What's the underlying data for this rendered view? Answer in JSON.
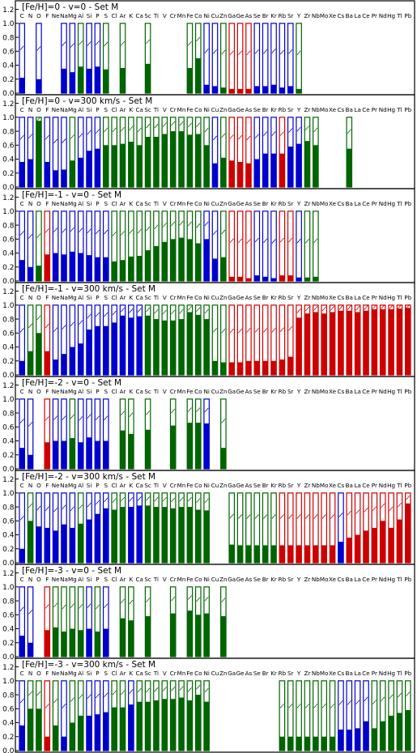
{
  "colors": {
    "blue": "#0000cc",
    "green": "#006400",
    "red": "#cc0000",
    "frame": "#000000"
  },
  "elements": [
    "C",
    "N",
    "O",
    "F",
    "Ne",
    "Na",
    "Mg",
    "Al",
    "Si",
    "P",
    "S",
    "Cl",
    "Ar",
    "K",
    "Ca",
    "Sc",
    "Ti",
    "V",
    "Cr",
    "Mn",
    "Fe",
    "Co",
    "Ni",
    "Cu",
    "Zn",
    "Ga",
    "Ge",
    "As",
    "Se",
    "Br",
    "Kr",
    "Rb",
    "Sr",
    "Y",
    "Zr",
    "Nb",
    "Mo",
    "Xe",
    "Cs",
    "Ba",
    "La",
    "Ce",
    "Pr",
    "Nd",
    "Hg",
    "Tl",
    "Pb"
  ],
  "chart_data": [
    {
      "type": "bar",
      "title": "[Fe/H]=0 - v=0 - Set M",
      "ylim": [
        0,
        1.3
      ],
      "yticks": [
        "0.0",
        "0.2",
        "0.4",
        "0.6",
        "0.8",
        "1.0",
        "1.2"
      ],
      "categories": [
        "C",
        "N",
        "O",
        "F",
        "Ne",
        "Na",
        "Mg",
        "Al",
        "Si",
        "P",
        "S",
        "Cl",
        "Ar",
        "K",
        "Ca",
        "Sc",
        "Ti",
        "V",
        "Cr",
        "Mn",
        "Fe",
        "Co",
        "Ni",
        "Cu",
        "Zn",
        "Ga",
        "Ge",
        "As",
        "Se",
        "Br",
        "Kr",
        "Rb",
        "Sr",
        "Y",
        "Zr",
        "Nb",
        "Mo",
        "Xe",
        "Cs",
        "Ba",
        "La",
        "Ce",
        "Pr",
        "Nd",
        "Hg",
        "Tl",
        "Pb"
      ],
      "values": [
        0.22,
        null,
        0.2,
        null,
        null,
        0.35,
        0.3,
        0.38,
        0.35,
        0.38,
        0.34,
        null,
        0.36,
        null,
        null,
        0.42,
        null,
        null,
        null,
        null,
        0.36,
        0.5,
        0.12,
        0.1,
        0.08,
        0.06,
        0.06,
        0.06,
        0.1,
        0.1,
        0.12,
        0.08,
        0.1,
        0.06,
        null,
        null,
        null,
        null,
        null,
        null,
        null,
        null,
        null,
        null,
        null,
        null,
        null
      ],
      "colors": [
        "b",
        null,
        "b",
        null,
        null,
        "b",
        "b",
        "g",
        "b",
        "b",
        "g",
        null,
        "g",
        null,
        null,
        "g",
        null,
        null,
        null,
        null,
        "g",
        "g",
        "b",
        "b",
        "g",
        "r",
        "r",
        "r",
        "b",
        "b",
        "b",
        "b",
        "b",
        "g",
        null,
        null,
        null,
        null,
        null,
        null,
        null,
        null,
        null,
        null,
        null,
        null,
        null
      ]
    },
    {
      "type": "bar",
      "title": "[Fe/H]=0 - v=300 km/s - Set M",
      "ylim": [
        0,
        1.3
      ],
      "yticks": [
        "0.0",
        "0.2",
        "0.4",
        "0.6",
        "0.8",
        "1.0",
        "1.2"
      ],
      "categories": [
        "C",
        "N",
        "O",
        "F",
        "Ne",
        "Na",
        "Mg",
        "Al",
        "Si",
        "P",
        "S",
        "Cl",
        "Ar",
        "K",
        "Ca",
        "Sc",
        "Ti",
        "V",
        "Cr",
        "Mn",
        "Fe",
        "Co",
        "Ni",
        "Cu",
        "Zn",
        "Ga",
        "Ge",
        "As",
        "Se",
        "Br",
        "Kr",
        "Rb",
        "Sr",
        "Y",
        "Zr",
        "Nb",
        "Mo",
        "Xe",
        "Cs",
        "Ba",
        "La",
        "Ce",
        "Pr",
        "Nd",
        "Hg",
        "Tl",
        "Pb"
      ],
      "values": [
        0.36,
        0.4,
        0.95,
        0.36,
        0.24,
        0.25,
        0.38,
        0.42,
        0.52,
        0.55,
        0.6,
        0.6,
        0.62,
        0.65,
        0.6,
        0.72,
        0.72,
        0.76,
        0.8,
        0.8,
        0.75,
        0.76,
        0.6,
        0.34,
        0.42,
        0.38,
        0.36,
        0.34,
        0.4,
        0.48,
        0.48,
        0.48,
        0.58,
        0.62,
        0.66,
        0.6,
        null,
        null,
        null,
        0.55,
        null,
        null,
        null,
        null,
        null,
        null,
        null
      ],
      "colors": [
        "b",
        "b",
        "g",
        "b",
        "b",
        "b",
        "g",
        "b",
        "b",
        "b",
        "g",
        "g",
        "g",
        "g",
        "g",
        "g",
        "g",
        "g",
        "g",
        "g",
        "g",
        "g",
        "g",
        "b",
        "g",
        "r",
        "r",
        "r",
        "b",
        "b",
        "b",
        "r",
        "b",
        "b",
        "g",
        "g",
        null,
        null,
        null,
        "g",
        null,
        null,
        null,
        null,
        null,
        null,
        null
      ]
    },
    {
      "type": "bar",
      "title": "[Fe/H]=-1 - v=0 - Set M",
      "ylim": [
        0,
        1.3
      ],
      "yticks": [
        "0.0",
        "0.2",
        "0.4",
        "0.6",
        "0.8",
        "1.0",
        "1.2"
      ],
      "categories": [
        "C",
        "N",
        "O",
        "F",
        "Ne",
        "Na",
        "Mg",
        "Al",
        "Si",
        "P",
        "S",
        "Cl",
        "Ar",
        "K",
        "Ca",
        "Sc",
        "Ti",
        "V",
        "Cr",
        "Mn",
        "Fe",
        "Co",
        "Ni",
        "Cu",
        "Zn",
        "Ga",
        "Ge",
        "As",
        "Se",
        "Br",
        "Kr",
        "Rb",
        "Sr",
        "Y",
        "Zr",
        "Nb",
        "Mo",
        "Xe",
        "Cs",
        "Ba",
        "La",
        "Ce",
        "Pr",
        "Nd",
        "Hg",
        "Tl",
        "Pb"
      ],
      "values": [
        0.3,
        0.2,
        0.22,
        0.38,
        0.4,
        0.38,
        0.42,
        0.4,
        0.37,
        0.34,
        0.34,
        0.28,
        0.3,
        0.35,
        0.36,
        0.44,
        0.5,
        0.56,
        0.6,
        0.62,
        0.6,
        0.54,
        0.6,
        0.32,
        0.34,
        0.06,
        0.06,
        0.04,
        0.08,
        0.06,
        0.04,
        0.08,
        0.08,
        0.05,
        0.05,
        0.06,
        null,
        null,
        null,
        null,
        null,
        null,
        null,
        null,
        null,
        null,
        null
      ],
      "colors": [
        "b",
        "b",
        "g",
        "r",
        "b",
        "b",
        "b",
        "b",
        "b",
        "b",
        "b",
        "g",
        "g",
        "g",
        "g",
        "g",
        "g",
        "g",
        "g",
        "g",
        "g",
        "g",
        "b",
        "b",
        "g",
        "r",
        "r",
        "r",
        "b",
        "b",
        "b",
        "r",
        "r",
        "b",
        "g",
        "g",
        null,
        null,
        null,
        null,
        null,
        null,
        null,
        null,
        null,
        null,
        null
      ]
    },
    {
      "type": "bar",
      "title": "[Fe/H]=-1 - v=300 km/s - Set M",
      "ylim": [
        0,
        1.3
      ],
      "yticks": [
        "0.0",
        "0.2",
        "0.4",
        "0.6",
        "0.8",
        "1.0",
        "1.2"
      ],
      "categories": [
        "C",
        "N",
        "O",
        "F",
        "Ne",
        "Na",
        "Mg",
        "Al",
        "Si",
        "P",
        "S",
        "Cl",
        "Ar",
        "K",
        "Ca",
        "Sc",
        "Ti",
        "V",
        "Cr",
        "Mn",
        "Fe",
        "Co",
        "Ni",
        "Cu",
        "Zn",
        "Ga",
        "Ge",
        "As",
        "Se",
        "Br",
        "Kr",
        "Rb",
        "Sr",
        "Y",
        "Zr",
        "Nb",
        "Mo",
        "Xe",
        "Cs",
        "Ba",
        "La",
        "Ce",
        "Pr",
        "Nd",
        "Hg",
        "Tl",
        "Pb"
      ],
      "values": [
        0.2,
        0.34,
        0.6,
        0.34,
        0.22,
        0.3,
        0.4,
        0.45,
        0.65,
        0.7,
        0.7,
        0.75,
        0.85,
        0.82,
        0.84,
        0.85,
        0.8,
        0.78,
        0.78,
        0.8,
        0.9,
        0.86,
        0.8,
        0.2,
        0.18,
        0.18,
        0.18,
        0.2,
        0.2,
        0.2,
        0.2,
        0.22,
        0.26,
        0.82,
        0.88,
        0.9,
        0.88,
        0.9,
        0.92,
        0.92,
        0.9,
        0.92,
        0.94,
        0.94,
        0.94,
        0.95,
        0.96
      ],
      "colors": [
        "b",
        "g",
        "g",
        "r",
        "b",
        "b",
        "b",
        "b",
        "b",
        "b",
        "b",
        "b",
        "b",
        "b",
        "b",
        "g",
        "g",
        "g",
        "g",
        "g",
        "g",
        "g",
        "g",
        "g",
        "g",
        "r",
        "r",
        "r",
        "r",
        "r",
        "r",
        "r",
        "r",
        "r",
        "r",
        "r",
        "r",
        "r",
        "r",
        "r",
        "r",
        "r",
        "r",
        "r",
        "r",
        "r",
        "r"
      ]
    },
    {
      "type": "bar",
      "title": "[Fe/H]=-2 - v=0 - Set M",
      "ylim": [
        0,
        1.3
      ],
      "yticks": [
        "0.0",
        "0.2",
        "0.4",
        "0.6",
        "0.8",
        "1.0",
        "1.2"
      ],
      "categories": [
        "C",
        "N",
        "O",
        "F",
        "Ne",
        "Na",
        "Mg",
        "Al",
        "Si",
        "P",
        "S",
        "Cl",
        "Ar",
        "K",
        "Ca",
        "Sc",
        "Ti",
        "V",
        "Cr",
        "Mn",
        "Fe",
        "Co",
        "Ni",
        "Cu",
        "Zn",
        "Ga",
        "Ge",
        "As",
        "Se",
        "Br",
        "Kr",
        "Rb",
        "Sr",
        "Y",
        "Zr",
        "Nb",
        "Mo",
        "Xe",
        "Cs",
        "Ba",
        "La",
        "Ce",
        "Pr",
        "Nd",
        "Hg",
        "Tl",
        "Pb"
      ],
      "values": [
        0.3,
        0.2,
        null,
        0.38,
        0.4,
        0.4,
        0.44,
        0.38,
        0.45,
        0.4,
        0.4,
        null,
        0.55,
        0.5,
        null,
        0.56,
        null,
        null,
        0.62,
        null,
        0.66,
        0.66,
        0.65,
        null,
        0.3,
        null,
        null,
        null,
        null,
        null,
        null,
        null,
        null,
        null,
        null,
        null,
        null,
        null,
        null,
        null,
        null,
        null,
        null,
        null,
        null,
        null,
        null
      ],
      "colors": [
        "b",
        "b",
        null,
        "r",
        "b",
        "b",
        "g",
        "b",
        "b",
        "b",
        "b",
        null,
        "g",
        "g",
        null,
        "g",
        null,
        null,
        "g",
        null,
        "g",
        "g",
        "b",
        null,
        "g",
        null,
        null,
        null,
        null,
        null,
        null,
        null,
        null,
        null,
        null,
        null,
        null,
        null,
        null,
        null,
        null,
        null,
        null,
        null,
        null,
        null,
        null
      ]
    },
    {
      "type": "bar",
      "title": "[Fe/H]=-2 - v=300 km/s - Set M",
      "ylim": [
        0,
        1.3
      ],
      "yticks": [
        "0.0",
        "0.2",
        "0.4",
        "0.6",
        "0.8",
        "1.0",
        "1.2"
      ],
      "categories": [
        "C",
        "N",
        "O",
        "F",
        "Ne",
        "Na",
        "Mg",
        "Al",
        "Si",
        "P",
        "S",
        "Cl",
        "Ar",
        "K",
        "Ca",
        "Sc",
        "Ti",
        "V",
        "Cr",
        "Mn",
        "Fe",
        "Co",
        "Ni",
        "Cu",
        "Zn",
        "Ga",
        "Ge",
        "As",
        "Se",
        "Br",
        "Kr",
        "Rb",
        "Sr",
        "Y",
        "Zr",
        "Nb",
        "Mo",
        "Xe",
        "Cs",
        "Ba",
        "La",
        "Ce",
        "Pr",
        "Nd",
        "Hg",
        "Tl",
        "Pb"
      ],
      "values": [
        0.2,
        0.6,
        0.52,
        0.5,
        0.46,
        0.55,
        0.5,
        0.56,
        0.62,
        0.7,
        0.78,
        0.76,
        0.8,
        0.8,
        0.82,
        0.82,
        0.8,
        0.8,
        0.78,
        0.8,
        0.8,
        0.76,
        0.75,
        null,
        null,
        0.26,
        0.25,
        0.25,
        0.25,
        0.25,
        0.25,
        0.25,
        0.25,
        0.25,
        0.25,
        0.25,
        0.25,
        0.25,
        0.3,
        0.36,
        0.4,
        0.46,
        0.5,
        0.6,
        0.5,
        0.62,
        0.85
      ],
      "colors": [
        "b",
        "g",
        "b",
        "b",
        "b",
        "b",
        "b",
        "g",
        "b",
        "b",
        "b",
        "g",
        "g",
        "b",
        "b",
        "g",
        "g",
        "g",
        "g",
        "g",
        "g",
        "g",
        "g",
        null,
        null,
        "g",
        "g",
        "g",
        "g",
        "g",
        "g",
        "r",
        "r",
        "r",
        "r",
        "r",
        "r",
        "r",
        "b",
        "r",
        "r",
        "r",
        "r",
        "r",
        "r",
        "r",
        "r"
      ]
    },
    {
      "type": "bar",
      "title": "[Fe/H]=-3 - v=0 - Set M",
      "ylim": [
        0,
        1.3
      ],
      "yticks": [
        "0.0",
        "0.2",
        "0.4",
        "0.6",
        "0.8",
        "1.0",
        "1.2"
      ],
      "categories": [
        "C",
        "N",
        "O",
        "F",
        "Ne",
        "Na",
        "Mg",
        "Al",
        "Si",
        "P",
        "S",
        "Cl",
        "Ar",
        "K",
        "Ca",
        "Sc",
        "Ti",
        "V",
        "Cr",
        "Mn",
        "Fe",
        "Co",
        "Ni",
        "Cu",
        "Zn",
        "Ga",
        "Ge",
        "As",
        "Se",
        "Br",
        "Kr",
        "Rb",
        "Sr",
        "Y",
        "Zr",
        "Nb",
        "Mo",
        "Xe",
        "Cs",
        "Ba",
        "La",
        "Ce",
        "Pr",
        "Nd",
        "Hg",
        "Tl",
        "Pb"
      ],
      "values": [
        0.3,
        0.2,
        null,
        0.38,
        0.42,
        0.36,
        0.4,
        0.38,
        0.4,
        0.36,
        0.4,
        null,
        0.55,
        0.52,
        null,
        0.58,
        null,
        null,
        0.62,
        null,
        0.66,
        0.6,
        0.62,
        null,
        0.58,
        null,
        null,
        null,
        null,
        null,
        null,
        null,
        null,
        null,
        null,
        null,
        null,
        null,
        null,
        null,
        null,
        null,
        null,
        null,
        null,
        null,
        null
      ],
      "colors": [
        "b",
        "b",
        null,
        "r",
        "g",
        "g",
        "g",
        "g",
        "b",
        "g",
        "b",
        null,
        "g",
        "g",
        null,
        "g",
        null,
        null,
        "g",
        null,
        "g",
        "g",
        "g",
        null,
        "g",
        null,
        null,
        null,
        null,
        null,
        null,
        null,
        null,
        null,
        null,
        null,
        null,
        null,
        null,
        null,
        null,
        null,
        null,
        null,
        null,
        null,
        null
      ]
    },
    {
      "type": "bar",
      "title": "[Fe/H]=-3 - v=300 km/s - Set M",
      "ylim": [
        0,
        1.3
      ],
      "yticks": [
        "0.0",
        "0.2",
        "0.4",
        "0.6",
        "0.8",
        "1.0",
        "1.2"
      ],
      "categories": [
        "C",
        "N",
        "O",
        "F",
        "Ne",
        "Na",
        "Mg",
        "Al",
        "Si",
        "P",
        "S",
        "Cl",
        "Ar",
        "K",
        "Ca",
        "Sc",
        "Ti",
        "V",
        "Cr",
        "Mn",
        "Fe",
        "Co",
        "Ni",
        "Cu",
        "Zn",
        "Ga",
        "Ge",
        "As",
        "Se",
        "Br",
        "Kr",
        "Rb",
        "Sr",
        "Y",
        "Zr",
        "Nb",
        "Mo",
        "Xe",
        "Cs",
        "Ba",
        "La",
        "Ce",
        "Pr",
        "Nd",
        "Hg",
        "Tl",
        "Pb"
      ],
      "values": [
        0.36,
        0.6,
        0.6,
        0.2,
        0.36,
        0.2,
        0.4,
        0.5,
        0.5,
        0.52,
        0.55,
        0.62,
        0.62,
        0.66,
        0.7,
        0.7,
        0.72,
        0.74,
        0.74,
        0.76,
        0.72,
        0.8,
        0.7,
        null,
        null,
        null,
        null,
        null,
        null,
        null,
        null,
        0.2,
        0.2,
        0.2,
        0.2,
        0.2,
        0.2,
        0.2,
        0.3,
        0.3,
        0.32,
        0.42,
        0.32,
        0.42,
        0.5,
        0.54,
        0.58
      ],
      "colors": [
        "b",
        "g",
        "g",
        "r",
        "g",
        "b",
        "g",
        "g",
        "b",
        "b",
        "b",
        "g",
        "g",
        "b",
        "g",
        "g",
        "g",
        "g",
        "g",
        "g",
        "g",
        "g",
        "g",
        null,
        null,
        null,
        null,
        null,
        null,
        null,
        null,
        "g",
        "g",
        "g",
        "g",
        "g",
        "g",
        "g",
        "b",
        "b",
        "b",
        "b",
        "g",
        "g",
        "g",
        "g",
        "g"
      ]
    }
  ]
}
